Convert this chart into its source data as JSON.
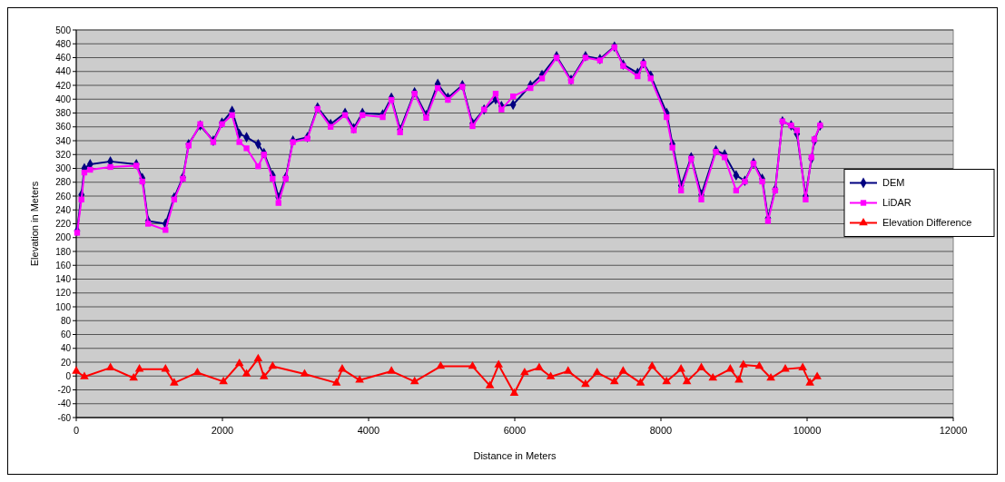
{
  "chart_data": {
    "type": "line",
    "xlabel": "Distance in Meters",
    "ylabel": "Elevation in Meters",
    "xlim": [
      0,
      12000
    ],
    "xticks": [
      0,
      2000,
      4000,
      6000,
      8000,
      10000,
      12000
    ],
    "ylim": [
      -60,
      500
    ],
    "yticks": [
      -60,
      -40,
      -20,
      0,
      20,
      40,
      60,
      80,
      100,
      120,
      140,
      160,
      180,
      200,
      220,
      240,
      260,
      280,
      300,
      320,
      340,
      360,
      380,
      400,
      420,
      440,
      460,
      480,
      500
    ],
    "grid": "y",
    "legend": "right",
    "series": [
      {
        "name": "DEM",
        "color": "#000080",
        "marker": "diamond",
        "x": [
          12,
          71,
          111,
          190,
          467,
          822,
          904,
          983,
          1221,
          1340,
          1459,
          1538,
          1696,
          1875,
          1994,
          2132,
          2231,
          2330,
          2489,
          2568,
          2687,
          2767,
          2866,
          2965,
          3163,
          3302,
          3480,
          3678,
          3797,
          3916,
          4193,
          4312,
          4431,
          4629,
          4788,
          4946,
          5085,
          5283,
          5422,
          5580,
          5739,
          5818,
          5977,
          6215,
          6373,
          6572,
          6770,
          6968,
          7166,
          7364,
          7483,
          7681,
          7761,
          7860,
          8078,
          8157,
          8276,
          8414,
          8553,
          8752,
          8871,
          9029,
          9148,
          9267,
          9386,
          9465,
          9564,
          9663,
          9782,
          9861,
          9980,
          10059,
          10099,
          10178
        ],
        "values": [
          210,
          262,
          300,
          306,
          310,
          306,
          286,
          224,
          220,
          258,
          287,
          335,
          362,
          340,
          366,
          383,
          350,
          345,
          335,
          322,
          290,
          258,
          287,
          340,
          345,
          388,
          364,
          380,
          358,
          380,
          378,
          402,
          356,
          410,
          377,
          422,
          402,
          420,
          365,
          385,
          400,
          390,
          392,
          420,
          435,
          462,
          428,
          462,
          458,
          476,
          450,
          438,
          452,
          434,
          380,
          335,
          275,
          316,
          262,
          326,
          320,
          290,
          282,
          308,
          285,
          228,
          270,
          368,
          362,
          350,
          260,
          314,
          340,
          362
        ]
      },
      {
        "name": "LiDAR",
        "color": "#ff00ff",
        "marker": "square",
        "x": [
          12,
          71,
          111,
          190,
          467,
          822,
          904,
          983,
          1221,
          1340,
          1459,
          1538,
          1696,
          1875,
          1994,
          2132,
          2231,
          2330,
          2489,
          2568,
          2687,
          2767,
          2866,
          2965,
          3163,
          3302,
          3480,
          3678,
          3797,
          3916,
          4193,
          4312,
          4431,
          4629,
          4788,
          4946,
          5085,
          5283,
          5422,
          5580,
          5739,
          5818,
          5977,
          6215,
          6373,
          6572,
          6770,
          6968,
          7166,
          7364,
          7483,
          7681,
          7761,
          7860,
          8078,
          8157,
          8276,
          8414,
          8553,
          8752,
          8871,
          9029,
          9148,
          9267,
          9386,
          9465,
          9564,
          9663,
          9782,
          9861,
          9980,
          10059,
          10099,
          10178
        ],
        "values": [
          207,
          255,
          294,
          298,
          302,
          304,
          281,
          220,
          211,
          255,
          285,
          333,
          364,
          338,
          364,
          377,
          338,
          329,
          303,
          320,
          285,
          250,
          285,
          338,
          343,
          386,
          360,
          377,
          355,
          377,
          374,
          399,
          352,
          408,
          373,
          416,
          399,
          418,
          361,
          385,
          408,
          385,
          404,
          416,
          430,
          460,
          426,
          460,
          456,
          475,
          448,
          433,
          451,
          430,
          374,
          330,
          268,
          314,
          255,
          324,
          316,
          268,
          281,
          307,
          281,
          224,
          268,
          368,
          362,
          355,
          255,
          316,
          342,
          362
        ]
      },
      {
        "name": "Elevation Difference",
        "color": "#ff0000",
        "marker": "triangle",
        "x": [
          0,
          111,
          468,
          785,
          864,
          1221,
          1340,
          1657,
          2014,
          2232,
          2330,
          2489,
          2568,
          2687,
          3124,
          3560,
          3639,
          3877,
          4313,
          4630,
          4986,
          5422,
          5660,
          5779,
          5993,
          6135,
          6334,
          6492,
          6730,
          6968,
          7126,
          7364,
          7483,
          7721,
          7879,
          8077,
          8275,
          8355,
          8553,
          8711,
          8949,
          9068,
          9128,
          9346,
          9504,
          9702,
          9940,
          10039,
          10138
        ],
        "values": [
          7,
          -1,
          12,
          -3,
          10,
          10,
          -10,
          5,
          -8,
          18,
          3,
          25,
          -1,
          14,
          3,
          -10,
          10,
          -6,
          7,
          -8,
          14,
          14,
          -14,
          16,
          -25,
          5,
          12,
          -1,
          7,
          -12,
          5,
          -8,
          7,
          -10,
          14,
          -8,
          10,
          -8,
          12,
          -3,
          10,
          -6,
          16,
          14,
          -3,
          10,
          12,
          -10,
          -1
        ]
      }
    ]
  }
}
